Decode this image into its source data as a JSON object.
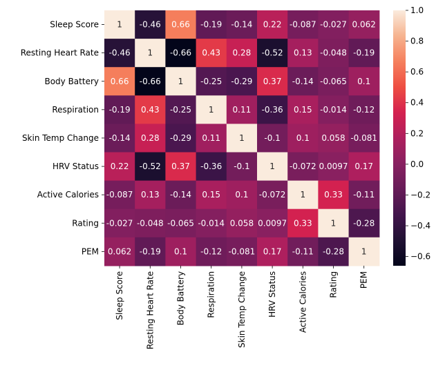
{
  "chart_data": {
    "type": "heatmap",
    "title": "",
    "xlabel": "",
    "ylabel": "",
    "rows": [
      "Sleep Score",
      "Resting Heart Rate",
      "Body Battery",
      "Respiration",
      "Skin Temp Change",
      "HRV Status",
      "Active Calories",
      "Rating",
      "PEM"
    ],
    "columns": [
      "Sleep Score",
      "Resting Heart Rate",
      "Body Battery",
      "Respiration",
      "Skin Temp Change",
      "HRV Status",
      "Active Calories",
      "Rating",
      "PEM"
    ],
    "values": [
      [
        1,
        -0.46,
        0.66,
        -0.19,
        -0.14,
        0.22,
        -0.087,
        -0.027,
        0.062
      ],
      [
        -0.46,
        1,
        -0.66,
        0.43,
        0.28,
        -0.52,
        0.13,
        -0.048,
        -0.19
      ],
      [
        0.66,
        -0.66,
        1,
        -0.25,
        -0.29,
        0.37,
        -0.14,
        -0.065,
        0.1
      ],
      [
        -0.19,
        0.43,
        -0.25,
        1,
        0.11,
        -0.36,
        0.15,
        -0.014,
        -0.12
      ],
      [
        -0.14,
        0.28,
        -0.29,
        0.11,
        1,
        -0.1,
        0.1,
        0.058,
        -0.081
      ],
      [
        0.22,
        -0.52,
        0.37,
        -0.36,
        -0.1,
        1,
        -0.072,
        0.0097,
        0.17
      ],
      [
        -0.087,
        0.13,
        -0.14,
        0.15,
        0.1,
        -0.072,
        1,
        0.33,
        -0.11
      ],
      [
        -0.027,
        -0.048,
        -0.065,
        -0.014,
        0.058,
        0.0097,
        0.33,
        1,
        -0.28
      ],
      [
        0.062,
        -0.19,
        0.1,
        -0.12,
        -0.081,
        0.17,
        -0.11,
        -0.28,
        1
      ]
    ],
    "annotations": [
      [
        "1",
        "-0.46",
        "0.66",
        "-0.19",
        "-0.14",
        "0.22",
        "-0.087",
        "-0.027",
        "0.062"
      ],
      [
        "-0.46",
        "1",
        "-0.66",
        "0.43",
        "0.28",
        "-0.52",
        "0.13",
        "-0.048",
        "-0.19"
      ],
      [
        "0.66",
        "-0.66",
        "1",
        "-0.25",
        "-0.29",
        "0.37",
        "-0.14",
        "-0.065",
        "0.1"
      ],
      [
        "-0.19",
        "0.43",
        "-0.25",
        "1",
        "0.11",
        "-0.36",
        "0.15",
        "-0.014",
        "-0.12"
      ],
      [
        "-0.14",
        "0.28",
        "-0.29",
        "0.11",
        "1",
        "-0.1",
        "0.1",
        "0.058",
        "-0.081"
      ],
      [
        "0.22",
        "-0.52",
        "0.37",
        "-0.36",
        "-0.1",
        "1",
        "-0.072",
        "0.0097",
        "0.17"
      ],
      [
        "-0.087",
        "0.13",
        "-0.14",
        "0.15",
        "0.1",
        "-0.072",
        "1",
        "0.33",
        "-0.11"
      ],
      [
        "-0.027",
        "-0.048",
        "-0.065",
        "-0.014",
        "0.058",
        "0.0097",
        "0.33",
        "1",
        "-0.28"
      ],
      [
        "0.062",
        "-0.19",
        "0.1",
        "-0.12",
        "-0.081",
        "0.17",
        "-0.11",
        "-0.28",
        "1"
      ]
    ],
    "colormap": "rocket",
    "vmin": -0.66,
    "vmax": 1.0,
    "colorbar": {
      "ticks": [
        -0.6,
        -0.4,
        -0.2,
        0.0,
        0.2,
        0.4,
        0.6,
        0.8,
        1.0
      ],
      "tick_labels": [
        "−0.6",
        "−0.4",
        "−0.2",
        "0.0",
        "0.2",
        "0.4",
        "0.6",
        "0.8",
        "1.0"
      ],
      "placement": "right"
    }
  }
}
